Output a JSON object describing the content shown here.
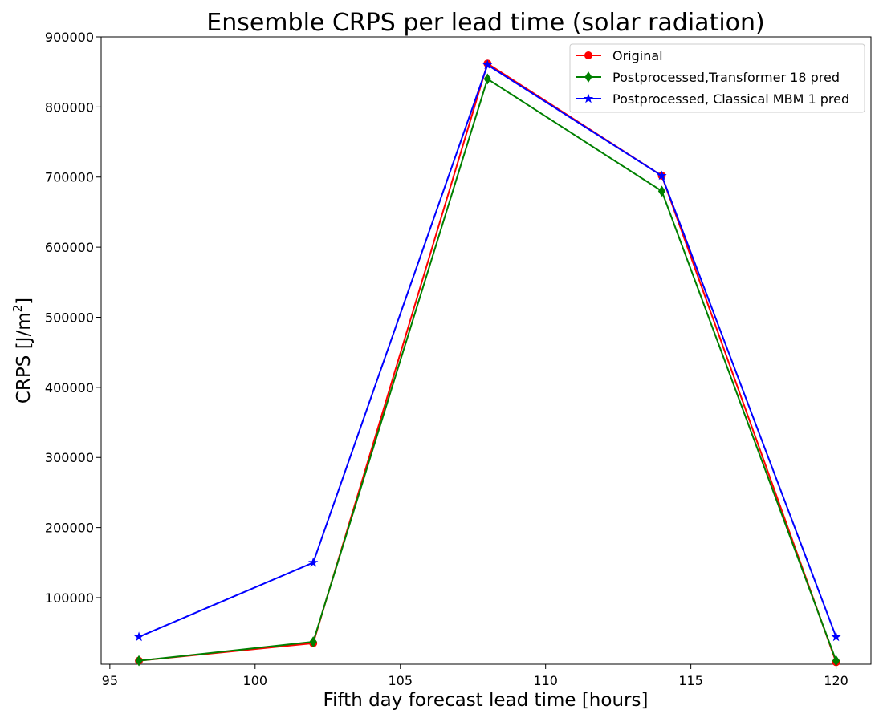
{
  "chart_data": {
    "type": "line",
    "title": "Ensemble CRPS per lead time (solar radiation)",
    "xlabel": "Fifth day forecast lead time [hours]",
    "ylabel": "CRPS [J/m²]",
    "ylabel_base": "CRPS [J/m",
    "ylabel_sup": "2",
    "ylabel_close": "]",
    "xlim": [
      94.7,
      121.2
    ],
    "ylim": [
      5000,
      900000
    ],
    "xticks": [
      95,
      100,
      105,
      110,
      115,
      120
    ],
    "yticks": [
      100000,
      200000,
      300000,
      400000,
      500000,
      600000,
      700000,
      800000,
      900000
    ],
    "legend_position": "top-right",
    "x": [
      96,
      102,
      108,
      114,
      120
    ],
    "series": [
      {
        "name": "Original",
        "color": "#ff0000",
        "marker": "circle",
        "values": [
          10000,
          35000,
          862000,
          702000,
          8000
        ]
      },
      {
        "name": "Postprocessed,Transformer 18 pred",
        "color": "#008000",
        "marker": "diamond",
        "values": [
          10000,
          37000,
          840000,
          680000,
          10000
        ]
      },
      {
        "name": "Postprocessed, Classical MBM 1 pred",
        "color": "#0000ff",
        "marker": "star",
        "values": [
          44000,
          150000,
          860000,
          702000,
          44000
        ]
      }
    ]
  }
}
